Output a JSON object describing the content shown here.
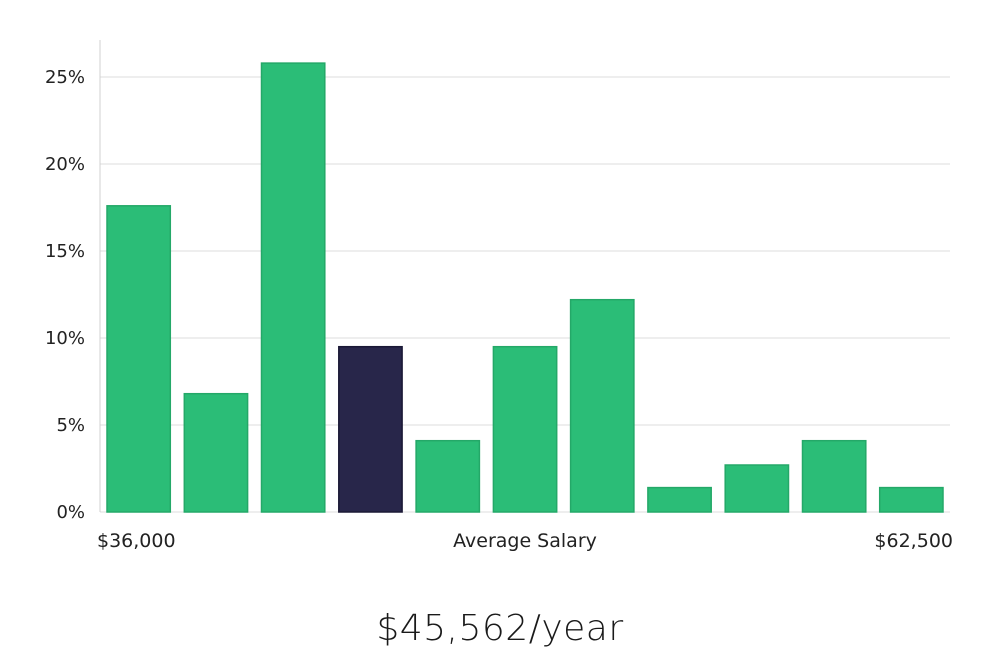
{
  "chart_data": {
    "type": "bar",
    "title": "",
    "xlabel": "Average Salary",
    "ylabel": "",
    "x_min_label": "$36,000",
    "x_max_label": "$62,500",
    "ylim": [
      0,
      27
    ],
    "yticks": [
      0,
      5,
      10,
      15,
      20,
      25
    ],
    "ytick_labels": [
      "0%",
      "5%",
      "10%",
      "15%",
      "20%",
      "25%"
    ],
    "values": [
      17.6,
      6.8,
      25.8,
      9.5,
      4.1,
      9.5,
      12.2,
      1.4,
      2.7,
      4.1,
      1.4
    ],
    "highlight_index": 3,
    "colors": {
      "bar": "#2bbd77",
      "bar_stroke": "#24a868",
      "highlight": "#28264a",
      "highlight_stroke": "#1a1835"
    }
  },
  "summary": {
    "salary_text": "$45,562/year"
  }
}
